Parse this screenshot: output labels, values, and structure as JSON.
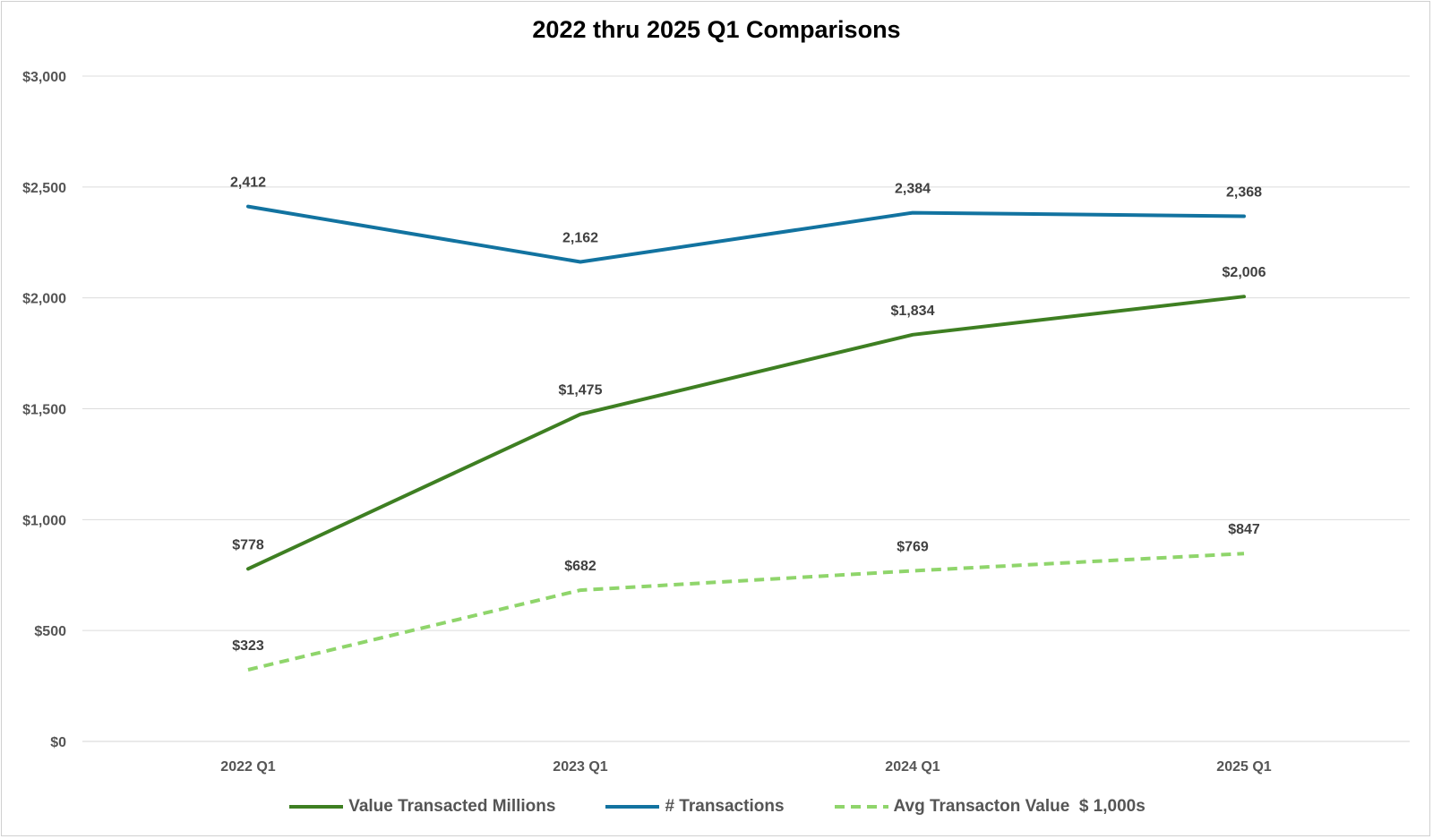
{
  "chart_data": {
    "type": "line",
    "title": "2022 thru 2025 Q1 Comparisons",
    "categories": [
      "2022 Q1",
      "2023 Q1",
      "2024 Q1",
      "2025 Q1"
    ],
    "ylim": [
      0,
      3000
    ],
    "yticks": [
      0,
      500,
      1000,
      1500,
      2000,
      2500,
      3000
    ],
    "ytick_labels": [
      "$0",
      "$500",
      "$1,000",
      "$1,500",
      "$2,000",
      "$2,500",
      "$3,000"
    ],
    "grid": true,
    "legend_position": "bottom",
    "series": [
      {
        "name": "Value Transacted Millions",
        "values": [
          778,
          1475,
          1834,
          2006
        ],
        "labels": [
          "$778",
          "$1,475",
          "$1,834",
          "$2,006"
        ],
        "color": "#3e7f22",
        "style": "solid"
      },
      {
        "name": "# Transactions",
        "values": [
          2412,
          2162,
          2384,
          2368
        ],
        "labels": [
          "2,412",
          "2,162",
          "2,384",
          "2,368"
        ],
        "color": "#1273a0",
        "style": "solid"
      },
      {
        "name": "Avg Transacton Value  $ 1,000s",
        "values": [
          323,
          682,
          769,
          847
        ],
        "labels": [
          "$323",
          "$682",
          "$769",
          "$847"
        ],
        "color": "#8fd56b",
        "style": "dashed"
      }
    ]
  }
}
